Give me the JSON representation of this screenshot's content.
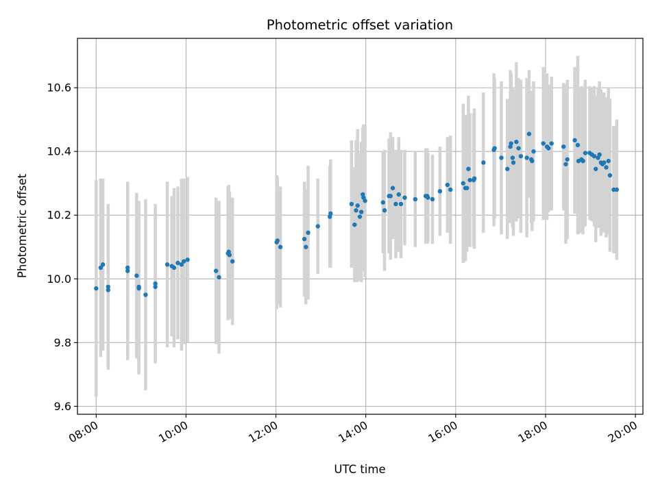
{
  "chart_data": {
    "type": "scatter",
    "title": "Photometric offset variation",
    "xlabel": "UTC time",
    "ylabel": "Photometric offset",
    "xlim": [
      "07:35",
      "20:10"
    ],
    "ylim": [
      9.575,
      10.755
    ],
    "x_ticks": [
      "08:00",
      "10:00",
      "12:00",
      "14:00",
      "16:00",
      "18:00",
      "20:00"
    ],
    "y_ticks": [
      9.6,
      9.8,
      10.0,
      10.2,
      10.4,
      10.6
    ],
    "grid": true,
    "colors": {
      "point": "#1f77b4",
      "errorbar": "#d3d3d3",
      "grid": "#b0b0b0"
    },
    "series": [
      {
        "x": [
          "08:00",
          "08:06",
          "08:09",
          "08:16",
          "08:16",
          "08:42",
          "08:42",
          "08:54",
          "08:57",
          "08:57",
          "09:06",
          "09:19",
          "09:19",
          "09:35",
          "09:41",
          "09:44",
          "09:49",
          "09:54",
          "09:57",
          "10:02",
          "10:40",
          "10:44",
          "10:56",
          "10:57",
          "10:58",
          "11:02",
          "12:01",
          "12:02",
          "12:06",
          "12:38",
          "12:40",
          "12:43",
          "12:56",
          "13:12",
          "13:13",
          "13:41",
          "13:45",
          "13:47",
          "13:49",
          "13:52",
          "13:54",
          "13:56",
          "13:57",
          "13:59",
          "14:23",
          "14:25",
          "14:31",
          "14:33",
          "14:36",
          "14:40",
          "14:44",
          "14:47",
          "14:52",
          "15:06",
          "15:20",
          "15:22",
          "15:23",
          "15:29",
          "15:39",
          "15:49",
          "15:53",
          "16:10",
          "16:13",
          "16:15",
          "16:17",
          "16:19",
          "16:24",
          "16:25",
          "16:37",
          "16:51",
          "16:52",
          "17:01",
          "17:09",
          "17:13",
          "17:14",
          "17:16",
          "17:17",
          "17:21",
          "17:24",
          "17:27",
          "17:35",
          "17:38",
          "17:41",
          "17:42",
          "17:44",
          "17:57",
          "18:02",
          "18:04",
          "18:08",
          "18:24",
          "18:27",
          "18:29",
          "18:39",
          "18:43",
          "18:44",
          "18:48",
          "18:50",
          "18:53",
          "18:59",
          "19:02",
          "19:05",
          "19:07",
          "19:10",
          "19:12",
          "19:14",
          "19:16",
          "19:18",
          "19:21",
          "19:24",
          "19:26",
          "19:31",
          "19:35"
        ],
        "y": [
          9.97,
          10.035,
          10.045,
          9.965,
          9.975,
          10.025,
          10.035,
          10.01,
          9.97,
          9.975,
          9.95,
          9.975,
          9.985,
          10.045,
          10.04,
          10.035,
          10.05,
          10.045,
          10.055,
          10.06,
          10.025,
          10.005,
          10.08,
          10.085,
          10.075,
          10.055,
          10.115,
          10.12,
          10.1,
          10.125,
          10.1,
          10.145,
          10.165,
          10.195,
          10.205,
          10.235,
          10.17,
          10.215,
          10.23,
          10.195,
          10.21,
          10.265,
          10.255,
          10.245,
          10.24,
          10.215,
          10.26,
          10.26,
          10.285,
          10.235,
          10.265,
          10.235,
          10.255,
          10.25,
          10.26,
          10.26,
          10.255,
          10.25,
          10.275,
          10.295,
          10.28,
          10.3,
          10.285,
          10.285,
          10.345,
          10.31,
          10.31,
          10.315,
          10.365,
          10.405,
          10.41,
          10.38,
          10.345,
          10.415,
          10.425,
          10.38,
          10.365,
          10.43,
          10.41,
          10.385,
          10.38,
          10.455,
          10.375,
          10.37,
          10.4,
          10.425,
          10.415,
          10.41,
          10.425,
          10.415,
          10.36,
          10.375,
          10.435,
          10.42,
          10.37,
          10.375,
          10.37,
          10.395,
          10.395,
          10.39,
          10.385,
          10.345,
          10.38,
          10.39,
          10.365,
          10.36,
          10.365,
          10.35,
          10.37,
          10.325,
          10.28,
          10.28
        ],
        "yerr": [
          0.34,
          0.28,
          0.27,
          0.25,
          0.26,
          0.28,
          0.27,
          0.26,
          0.27,
          0.27,
          0.3,
          0.24,
          0.25,
          0.26,
          0.22,
          0.25,
          0.24,
          0.27,
          0.26,
          0.26,
          0.23,
          0.24,
          0.21,
          0.21,
          0.2,
          0.2,
          0.21,
          0.2,
          0.19,
          0.18,
          0.18,
          0.21,
          0.15,
          0.16,
          0.17,
          0.2,
          0.18,
          0.22,
          0.24,
          0.2,
          0.22,
          0.21,
          0.23,
          0.24,
          0.16,
          0.19,
          0.18,
          0.2,
          0.16,
          0.17,
          0.18,
          0.17,
          0.15,
          0.15,
          0.15,
          0.15,
          0.14,
          0.14,
          0.14,
          0.15,
          0.17,
          0.25,
          0.23,
          0.2,
          0.23,
          0.21,
          0.21,
          0.22,
          0.22,
          0.24,
          0.22,
          0.24,
          0.22,
          0.24,
          0.22,
          0.22,
          0.23,
          0.25,
          0.22,
          0.24,
          0.25,
          0.2,
          0.2,
          0.22,
          0.22,
          0.24,
          0.23,
          0.2,
          0.21,
          0.2,
          0.25,
          0.25,
          0.23,
          0.28,
          0.23,
          0.23,
          0.23,
          0.23,
          0.21,
          0.21,
          0.22,
          0.23,
          0.22,
          0.23,
          0.23,
          0.2,
          0.22,
          0.22,
          0.23,
          0.24,
          0.2,
          0.22
        ]
      }
    ]
  }
}
